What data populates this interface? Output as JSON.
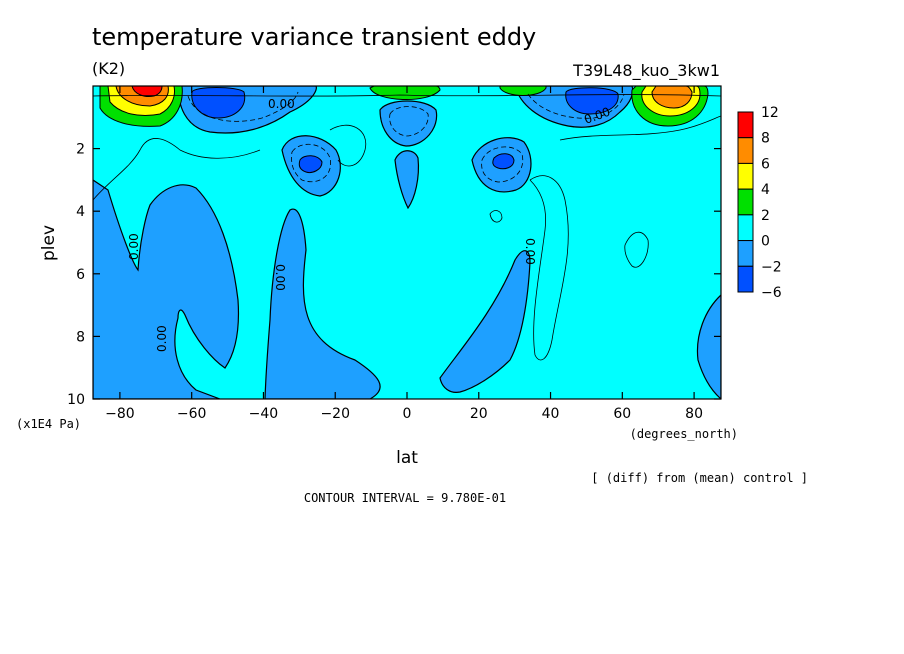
{
  "chart_data": {
    "type": "heatmap",
    "title": "temperature variance transient eddy",
    "units": "(K2)",
    "run_label": "T39L48_kuo_3kw1",
    "xlabel": "lat",
    "x_unit_label": "(degrees_north)",
    "ylabel": "plev",
    "y_unit_label": "(x1E4 Pa)",
    "xlim": [
      -87.5,
      87.5
    ],
    "ylim": [
      10,
      0
    ],
    "x_ticks": [
      -80,
      -60,
      -40,
      -20,
      0,
      20,
      40,
      60,
      80
    ],
    "y_ticks": [
      2,
      4,
      6,
      8,
      10
    ],
    "colorbar": {
      "levels": [
        "12",
        "8",
        "6",
        "4",
        "2",
        "0",
        "−2",
        "−6"
      ],
      "colors": [
        "#ff0000",
        "#ff8c00",
        "#ffff00",
        "#00e000",
        "#00ffff",
        "#1ea0ff",
        "#0050ff"
      ]
    },
    "contour_labels": [
      "0.00",
      "0.00",
      "0.00",
      "0.00",
      "0.00",
      "0.00"
    ],
    "comparison_note": "[ (diff) from (mean) control ]",
    "contour_interval": "CONTOUR INTERVAL = 9.780E-01",
    "features": [
      {
        "kind": "maximum",
        "lat": -73,
        "plev": 0.3,
        "value": 12
      },
      {
        "kind": "maximum",
        "lat": 73,
        "plev": 0.3,
        "value": 8
      },
      {
        "kind": "minimum",
        "lat": -53,
        "plev": 0.5,
        "value": -6
      },
      {
        "kind": "minimum",
        "lat": 52,
        "plev": 0.4,
        "value": -6
      },
      {
        "kind": "minimum",
        "lat": -27,
        "plev": 2.5,
        "value": -2
      },
      {
        "kind": "minimum",
        "lat": 27,
        "plev": 2.5,
        "value": -2
      },
      {
        "kind": "maximum",
        "lat": -1,
        "plev": 0.2,
        "value": 2
      },
      {
        "kind": "maximum",
        "lat": 40,
        "plev": 0.2,
        "value": 2
      }
    ]
  }
}
